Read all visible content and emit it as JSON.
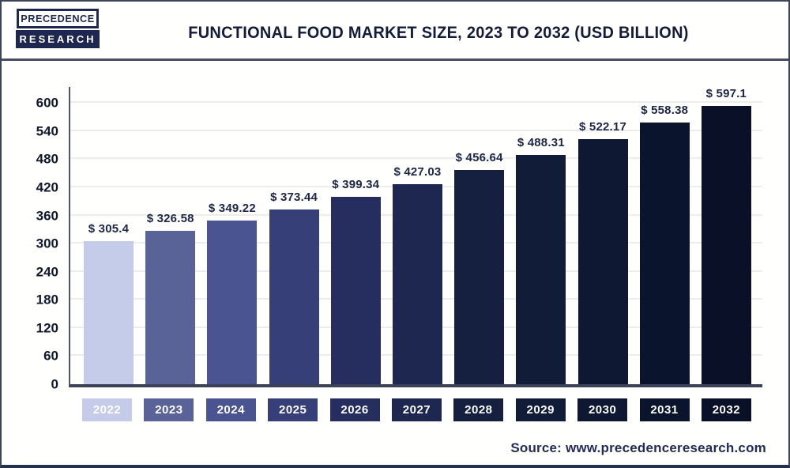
{
  "logo": {
    "line1": "PRECEDENCE",
    "line2": "RESEARCH"
  },
  "title": "FUNCTIONAL FOOD MARKET SIZE, 2023 TO 2032 (USD BILLION)",
  "source": "Source: www.precedenceresearch.com",
  "colors": {
    "text_navy": "#131c38",
    "divider": "#474c63",
    "axis": "#3c415a",
    "gridline": "#ededed",
    "value_label": "#1c2647",
    "logo_navy": "#1e2750"
  },
  "chart_data": {
    "type": "bar",
    "title": "Functional Food Market Size, 2023 to 2032 (USD Billion)",
    "categories": [
      "2022",
      "2023",
      "2024",
      "2025",
      "2026",
      "2027",
      "2028",
      "2029",
      "2030",
      "2031",
      "2032"
    ],
    "values": [
      305.4,
      326.58,
      349.22,
      373.44,
      399.34,
      427.03,
      456.64,
      488.31,
      522.17,
      558.38,
      597.1
    ],
    "value_labels": [
      "$ 305.4",
      "$ 326.58",
      "$ 349.22",
      "$ 373.44",
      "$ 399.34",
      "$ 427.03",
      "$ 456.64",
      "$ 488.31",
      "$ 522.17",
      "$ 558.38",
      "$ 597.1"
    ],
    "bar_colors": [
      "#c4cce9",
      "#5a6397",
      "#4a5490",
      "#373f78",
      "#262e60",
      "#1d2750",
      "#152040",
      "#111c39",
      "#0e1832",
      "#0b142d",
      "#091028"
    ],
    "xlabel": "",
    "ylabel": "",
    "ylim": [
      0,
      600
    ],
    "yticks": [
      0,
      60,
      120,
      180,
      240,
      300,
      360,
      420,
      480,
      540,
      600
    ],
    "axis_max_visual": 634,
    "grid": "horizontal",
    "legend": "none"
  }
}
